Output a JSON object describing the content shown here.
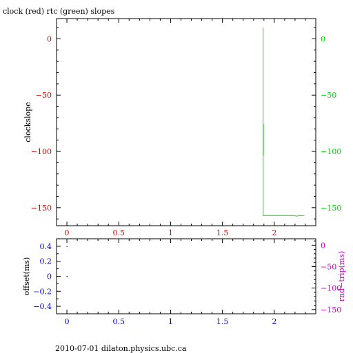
{
  "title": "clock (red) rtc (green) slopes",
  "footer": "2010-07-01 dilaton.physics.ubc.ca",
  "colors": {
    "red": "#dd0000",
    "green": "#00dd00",
    "blue": "#0000cc",
    "magenta": "#cc00cc",
    "axis": "#000000"
  },
  "chart_data": [
    {
      "type": "line",
      "title": "clock (red) rtc (green) slopes",
      "ylabel": "clockslope",
      "xlim": [
        -0.1,
        2.4
      ],
      "ylim": [
        -166,
        18
      ],
      "x_ticks": [
        "0",
        "0.5",
        "1",
        "1.5",
        "2"
      ],
      "y_ticks_left": [
        "0",
        "−50",
        "−100",
        "−150"
      ],
      "y_ticks_right": [
        "0",
        "−50",
        "−100",
        "−150"
      ],
      "grid": false,
      "series": [
        {
          "name": "rtc",
          "color": "#00dd00",
          "x": [
            1.892,
            1.892,
            1.895,
            1.895,
            1.893,
            1.893,
            1.898,
            1.9,
            2.0,
            2.1,
            2.2,
            2.21,
            2.26,
            2.29
          ],
          "y": [
            10,
            -103,
            -103,
            -76,
            -76,
            -157,
            -157,
            -157,
            -157,
            -157,
            -157,
            -157.5,
            -157,
            -157
          ]
        }
      ]
    },
    {
      "type": "scatter",
      "ylabel_left": "offset(ms)",
      "ylabel_right": "rnd−trip(ms)",
      "xlim": [
        -0.1,
        2.4
      ],
      "ylim_left": [
        -0.5,
        0.5
      ],
      "ylim_right": [
        -160,
        15
      ],
      "x_ticks": [
        "0",
        "0.5",
        "1",
        "1.5",
        "2"
      ],
      "y_ticks_left": [
        "0.4",
        "0.2",
        "0",
        "−0.2",
        "−0.4"
      ],
      "y_ticks_right": [
        "0",
        "−50",
        "−100",
        "−150"
      ],
      "grid": false,
      "series": [
        {
          "color": "#dd0000",
          "x": [
            0.0
          ],
          "y": [
            0.4
          ]
        },
        {
          "color": "#0000cc",
          "x": [
            0.0
          ],
          "y": [
            0.0
          ]
        }
      ]
    }
  ]
}
